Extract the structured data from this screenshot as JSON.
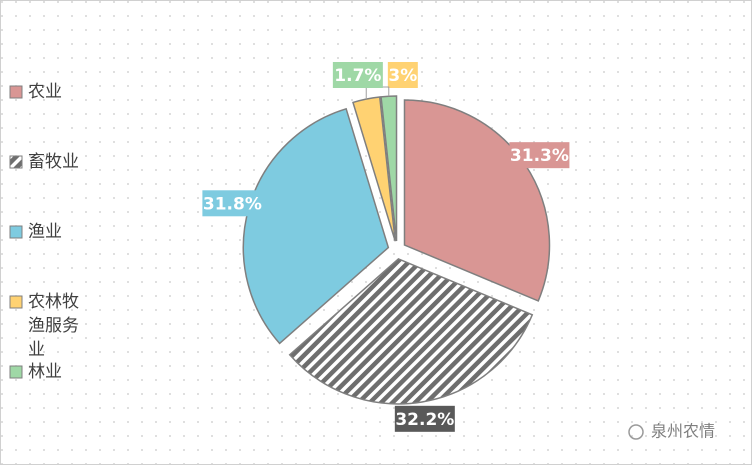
{
  "chart_data": {
    "type": "pie",
    "categories": [
      "农业",
      "畜牧业",
      "渔业",
      "农林牧渔服务业",
      "林业"
    ],
    "values": [
      31.3,
      32.2,
      31.8,
      3,
      1.7
    ],
    "value_labels": [
      "31.3%",
      "32.2%",
      "31.8%",
      "3%",
      "1.7%"
    ],
    "colors": [
      "#d99694",
      "#7f7f7f",
      "#7ecbe0",
      "#ffd272",
      "#9fd8a6"
    ],
    "hatch": [
      false,
      true,
      false,
      false,
      false
    ],
    "legend": "left",
    "watermark": "泉州农情"
  }
}
